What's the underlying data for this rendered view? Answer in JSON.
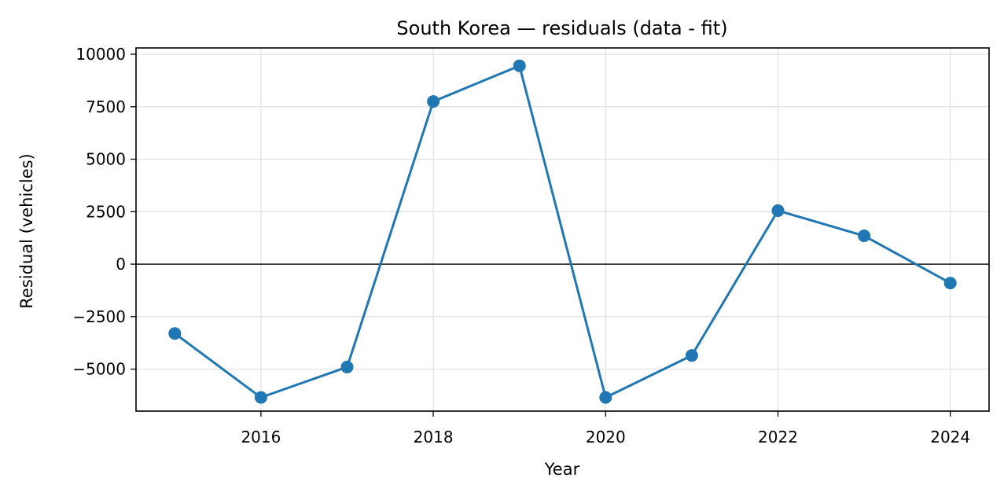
{
  "chart_data": {
    "type": "line",
    "title": "South Korea — residuals (data - fit)",
    "xlabel": "Year",
    "ylabel": "Residual (vehicles)",
    "x": [
      2015,
      2016,
      2017,
      2018,
      2019,
      2020,
      2021,
      2022,
      2023,
      2024
    ],
    "series": [
      {
        "values": [
          -3300,
          -6350,
          -4900,
          7750,
          9450,
          -6350,
          -4350,
          2550,
          1350,
          -900
        ],
        "color": "#1f77b4",
        "marker": "circle"
      }
    ],
    "xlim": [
      2014.55,
      2024.45
    ],
    "ylim": [
      -7000,
      10300
    ],
    "xticks": [
      2016,
      2018,
      2020,
      2022,
      2024
    ],
    "yticks": [
      -5000,
      -2500,
      0,
      2500,
      5000,
      7500,
      10000
    ],
    "xtick_labels": [
      "2016",
      "2018",
      "2020",
      "2022",
      "2024"
    ],
    "ytick_labels": [
      "−5000",
      "−2500",
      "0",
      "2500",
      "5000",
      "7500",
      "10000"
    ],
    "zero_line": true,
    "grid": true
  }
}
